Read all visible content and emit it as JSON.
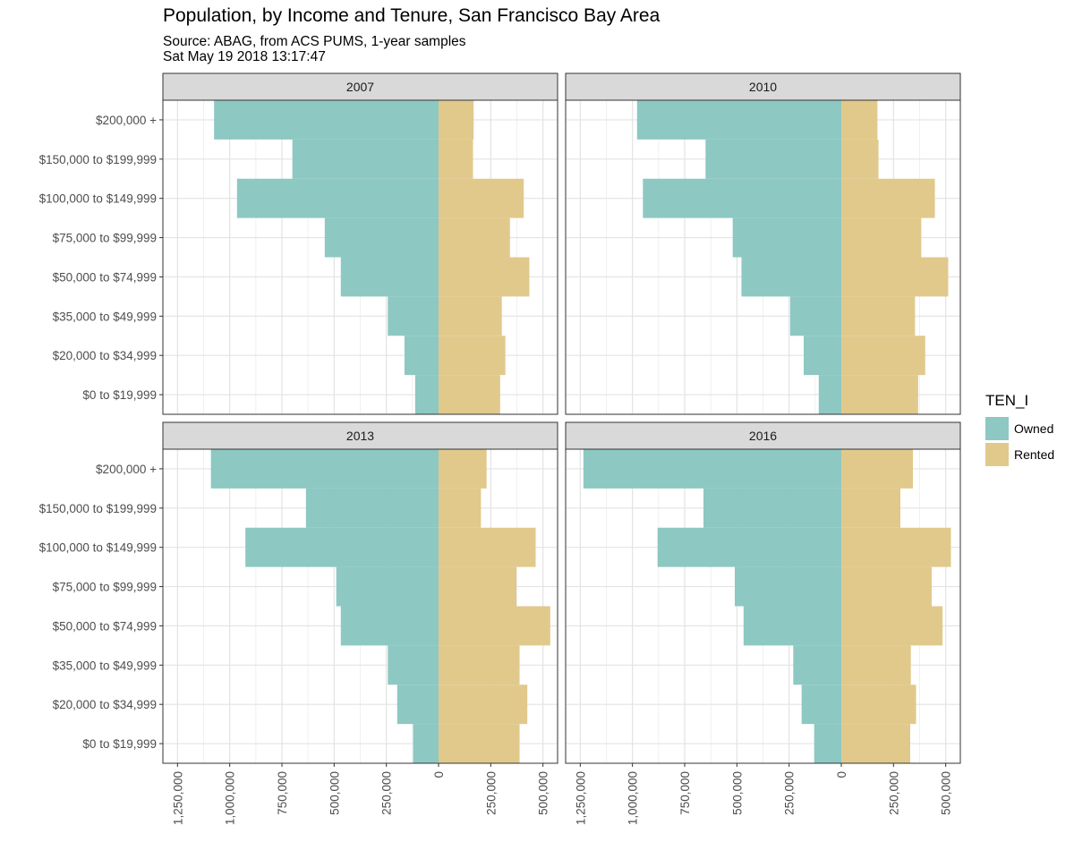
{
  "title": "Population, by Income and Tenure, San Francisco Bay Area",
  "subtitle": "Source: ABAG, from ACS PUMS, 1-year samples",
  "timestamp": "Sat May 19 2018 13:17:47",
  "legend": {
    "title": "TEN_I",
    "items": [
      {
        "label": "Owned",
        "color": "#8dc8c2"
      },
      {
        "label": "Rented",
        "color": "#e1c98c"
      }
    ]
  },
  "chart_data": {
    "type": "bar",
    "orientation": "horizontal",
    "layout": "faceted population pyramid",
    "categories": [
      "$0 to $19,999",
      "$20,000 to $34,999",
      "$35,000 to $49,999",
      "$50,000 to $74,999",
      "$75,000 to $99,999",
      "$100,000 to $149,999",
      "$150,000 to $199,999",
      "$200,000 +"
    ],
    "x_ticks": [
      -1250000,
      -1000000,
      -750000,
      -500000,
      -250000,
      0,
      250000,
      500000
    ],
    "x_tick_labels": [
      "1,250,000",
      "1,000,000",
      "750,000",
      "500,000",
      "250,000",
      "0",
      "250,000",
      "500,000"
    ],
    "xlim": [
      -1320000,
      570000
    ],
    "grid": true,
    "legend_position": "right",
    "facets": [
      {
        "label": "2007",
        "series": [
          {
            "name": "Owned",
            "values": [
              -112000,
              -163000,
              -243000,
              -468000,
              -545000,
              -965000,
              -700000,
              -1075000
            ]
          },
          {
            "name": "Rented",
            "values": [
              295000,
              320000,
              303000,
              435000,
              342000,
              408000,
              165000,
              168000
            ]
          }
        ]
      },
      {
        "label": "2010",
        "series": [
          {
            "name": "Owned",
            "values": [
              -108000,
              -180000,
              -245000,
              -478000,
              -520000,
              -950000,
              -650000,
              -978000
            ]
          },
          {
            "name": "Rented",
            "values": [
              368000,
              402000,
              353000,
              512000,
              383000,
              448000,
              178000,
              173000
            ]
          }
        ]
      },
      {
        "label": "2013",
        "series": [
          {
            "name": "Owned",
            "values": [
              -122000,
              -198000,
              -243000,
              -468000,
              -490000,
              -925000,
              -635000,
              -1090000
            ]
          },
          {
            "name": "Rented",
            "values": [
              388000,
              425000,
              388000,
              535000,
              373000,
              465000,
              203000,
              230000
            ]
          }
        ]
      },
      {
        "label": "2016",
        "series": [
          {
            "name": "Owned",
            "values": [
              -130000,
              -190000,
              -230000,
              -468000,
              -510000,
              -880000,
              -660000,
              -1235000
            ]
          },
          {
            "name": "Rented",
            "values": [
              330000,
              358000,
              333000,
              485000,
              433000,
              525000,
              283000,
              343000
            ]
          }
        ]
      }
    ]
  }
}
